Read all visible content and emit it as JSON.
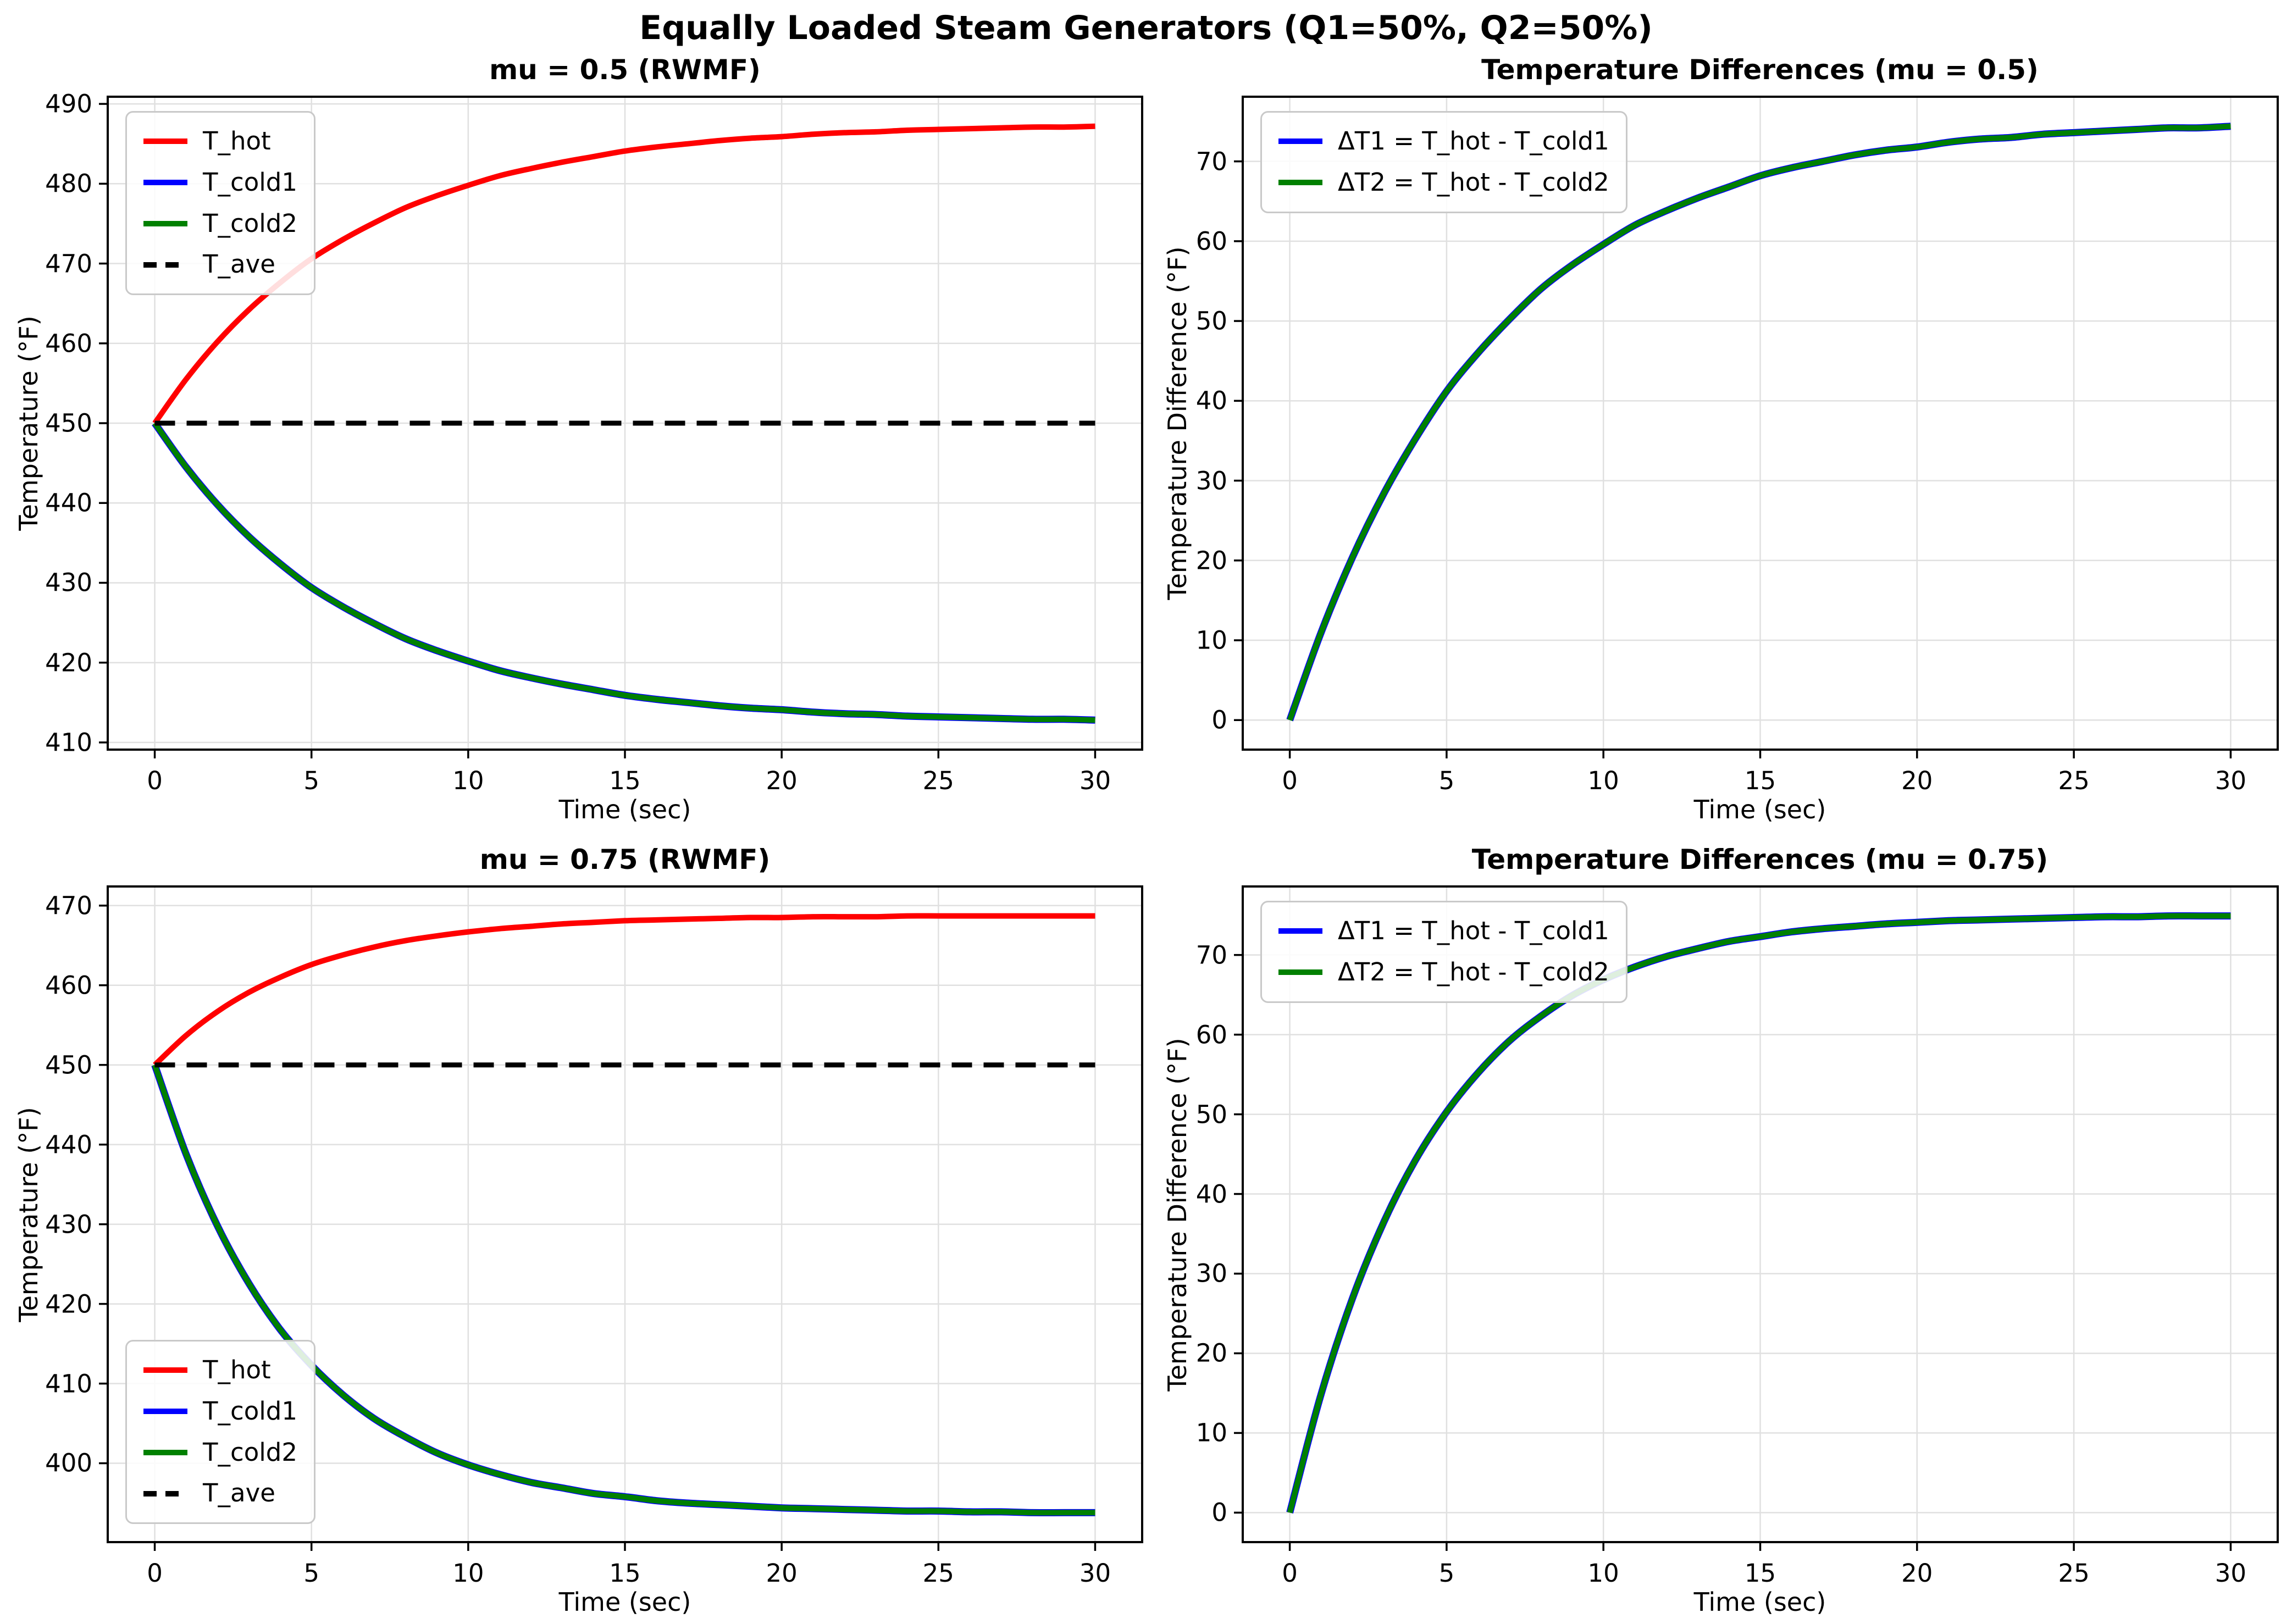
{
  "figure": {
    "suptitle": "Equally Loaded Steam Generators (Q1=50%, Q2=50%)",
    "background": "#ffffff"
  },
  "colors": {
    "t_hot": "#ff0000",
    "t_cold1": "#0000ff",
    "t_cold2": "#008000",
    "t_ave": "#000000",
    "grid": "#e0e0e0",
    "spine": "#000000",
    "text": "#000000"
  },
  "chart_data": [
    {
      "type": "line",
      "title": "mu = 0.5 (RWMF)",
      "xlabel": "Time (sec)",
      "ylabel": "Temperature (°F)",
      "xlim": [
        -1.5,
        31.5
      ],
      "ylim": [
        409.1,
        490.9
      ],
      "xticks": [
        0,
        5,
        10,
        15,
        20,
        25,
        30
      ],
      "yticks": [
        410,
        420,
        430,
        440,
        450,
        460,
        470,
        480,
        490
      ],
      "grid": true,
      "legend_position": "upper-left",
      "x": [
        0,
        1,
        2,
        3,
        4,
        5,
        6,
        7,
        8,
        9,
        10,
        11,
        12,
        13,
        14,
        15,
        16,
        17,
        18,
        19,
        20,
        21,
        22,
        23,
        24,
        25,
        26,
        27,
        28,
        29,
        30
      ],
      "series": [
        {
          "name": "T_hot",
          "color_key": "t_hot",
          "style": "solid",
          "values": [
            450,
            455.5,
            460.2,
            464.2,
            467.6,
            470.6,
            473,
            475.1,
            477,
            478.5,
            479.8,
            481,
            481.9,
            482.7,
            483.4,
            484.1,
            484.6,
            485,
            485.4,
            485.7,
            485.9,
            486.2,
            486.4,
            486.5,
            486.7,
            486.8,
            486.9,
            487,
            487.1,
            487.1,
            487.2
          ]
        },
        {
          "name": "T_cold1",
          "color_key": "t_cold1",
          "style": "solid",
          "values": [
            450,
            444.5,
            439.8,
            435.8,
            432.4,
            429.4,
            427,
            424.9,
            423,
            421.5,
            420.2,
            419,
            418.1,
            417.3,
            416.6,
            415.9,
            415.4,
            415,
            414.6,
            414.3,
            414.1,
            413.8,
            413.6,
            413.5,
            413.3,
            413.2,
            413.1,
            413,
            412.9,
            412.9,
            412.8
          ]
        },
        {
          "name": "T_cold2",
          "color_key": "t_cold2",
          "style": "solid",
          "values": [
            450,
            444.5,
            439.8,
            435.8,
            432.4,
            429.4,
            427,
            424.9,
            423,
            421.5,
            420.2,
            419,
            418.1,
            417.3,
            416.6,
            415.9,
            415.4,
            415,
            414.6,
            414.3,
            414.1,
            413.8,
            413.6,
            413.5,
            413.3,
            413.2,
            413.1,
            413,
            412.9,
            412.9,
            412.8
          ]
        },
        {
          "name": "T_ave",
          "color_key": "t_ave",
          "style": "dashed",
          "values": [
            450,
            450,
            450,
            450,
            450,
            450,
            450,
            450,
            450,
            450,
            450,
            450,
            450,
            450,
            450,
            450,
            450,
            450,
            450,
            450,
            450,
            450,
            450,
            450,
            450,
            450,
            450,
            450,
            450,
            450,
            450
          ]
        }
      ]
    },
    {
      "type": "line",
      "title": "Temperature Differences (mu = 0.5)",
      "xlabel": "Time (sec)",
      "ylabel": "Temperature Difference (°F)",
      "xlim": [
        -1.5,
        31.5
      ],
      "ylim": [
        -3.7,
        78.1
      ],
      "xticks": [
        0,
        5,
        10,
        15,
        20,
        25,
        30
      ],
      "yticks": [
        0,
        10,
        20,
        30,
        40,
        50,
        60,
        70
      ],
      "grid": true,
      "legend_position": "upper-left",
      "x": [
        0,
        1,
        2,
        3,
        4,
        5,
        6,
        7,
        8,
        9,
        10,
        11,
        12,
        13,
        14,
        15,
        16,
        17,
        18,
        19,
        20,
        21,
        22,
        23,
        24,
        25,
        26,
        27,
        28,
        29,
        30
      ],
      "series": [
        {
          "name": "ΔT1 = T_hot - T_cold1",
          "color_key": "t_cold1",
          "style": "solid",
          "values": [
            0,
            11,
            20.4,
            28.4,
            35.2,
            41.2,
            46,
            50.2,
            54,
            57,
            59.6,
            62,
            63.8,
            65.4,
            66.8,
            68.2,
            69.2,
            70,
            70.8,
            71.4,
            71.8,
            72.4,
            72.8,
            73,
            73.4,
            73.6,
            73.8,
            74,
            74.2,
            74.2,
            74.4
          ]
        },
        {
          "name": "ΔT2 = T_hot - T_cold2",
          "color_key": "t_cold2",
          "style": "solid",
          "values": [
            0,
            11,
            20.4,
            28.4,
            35.2,
            41.2,
            46,
            50.2,
            54,
            57,
            59.6,
            62,
            63.8,
            65.4,
            66.8,
            68.2,
            69.2,
            70,
            70.8,
            71.4,
            71.8,
            72.4,
            72.8,
            73,
            73.4,
            73.6,
            73.8,
            74,
            74.2,
            74.2,
            74.4
          ]
        }
      ]
    },
    {
      "type": "line",
      "title": "mu = 0.75 (RWMF)",
      "xlabel": "Time (sec)",
      "ylabel": "Temperature (°F)",
      "xlim": [
        -1.5,
        31.5
      ],
      "ylim": [
        390.1,
        472.4
      ],
      "xticks": [
        0,
        5,
        10,
        15,
        20,
        25,
        30
      ],
      "yticks": [
        400,
        410,
        420,
        430,
        440,
        450,
        460,
        470
      ],
      "grid": true,
      "legend_position": "lower-left",
      "x": [
        0,
        1,
        2,
        3,
        4,
        5,
        6,
        7,
        8,
        9,
        10,
        11,
        12,
        13,
        14,
        15,
        16,
        17,
        18,
        19,
        20,
        21,
        22,
        23,
        24,
        25,
        26,
        27,
        28,
        29,
        30
      ],
      "series": [
        {
          "name": "T_hot",
          "color_key": "t_hot",
          "style": "solid",
          "values": [
            450,
            453.7,
            456.7,
            459.1,
            461,
            462.6,
            463.8,
            464.8,
            465.6,
            466.2,
            466.7,
            467.1,
            467.4,
            467.7,
            467.9,
            468.1,
            468.2,
            468.3,
            468.4,
            468.5,
            468.5,
            468.6,
            468.6,
            468.6,
            468.7,
            468.7,
            468.7,
            468.7,
            468.7,
            468.7,
            468.7
          ]
        },
        {
          "name": "T_cold1",
          "color_key": "t_cold1",
          "style": "solid",
          "values": [
            450,
            438.8,
            429.8,
            422.6,
            416.8,
            412.3,
            408.6,
            405.6,
            403.3,
            401.3,
            399.8,
            398.6,
            397.6,
            396.9,
            396.2,
            395.8,
            395.3,
            395,
            394.8,
            394.6,
            394.4,
            394.3,
            394.2,
            394.1,
            394,
            394,
            393.9,
            393.9,
            393.8,
            393.8,
            393.8
          ]
        },
        {
          "name": "T_cold2",
          "color_key": "t_cold2",
          "style": "solid",
          "values": [
            450,
            438.8,
            429.8,
            422.6,
            416.8,
            412.3,
            408.6,
            405.6,
            403.3,
            401.3,
            399.8,
            398.6,
            397.6,
            396.9,
            396.2,
            395.8,
            395.3,
            395,
            394.8,
            394.6,
            394.4,
            394.3,
            394.2,
            394.1,
            394,
            394,
            393.9,
            393.9,
            393.8,
            393.8,
            393.8
          ]
        },
        {
          "name": "T_ave",
          "color_key": "t_ave",
          "style": "dashed",
          "values": [
            450,
            450,
            450,
            450,
            450,
            450,
            450,
            450,
            450,
            450,
            450,
            450,
            450,
            450,
            450,
            450,
            450,
            450,
            450,
            450,
            450,
            450,
            450,
            450,
            450,
            450,
            450,
            450,
            450,
            450,
            450
          ]
        }
      ]
    },
    {
      "type": "line",
      "title": "Temperature Differences (mu = 0.75)",
      "xlabel": "Time (sec)",
      "ylabel": "Temperature Difference (°F)",
      "xlim": [
        -1.5,
        31.5
      ],
      "ylim": [
        -3.7,
        78.6
      ],
      "xticks": [
        0,
        5,
        10,
        15,
        20,
        25,
        30
      ],
      "yticks": [
        0,
        10,
        20,
        30,
        40,
        50,
        60,
        70
      ],
      "grid": true,
      "legend_position": "upper-left",
      "x": [
        0,
        1,
        2,
        3,
        4,
        5,
        6,
        7,
        8,
        9,
        10,
        11,
        12,
        13,
        14,
        15,
        16,
        17,
        18,
        19,
        20,
        21,
        22,
        23,
        24,
        25,
        26,
        27,
        28,
        29,
        30
      ],
      "series": [
        {
          "name": "ΔT1 = T_hot - T_cold1",
          "color_key": "t_cold1",
          "style": "solid",
          "values": [
            0,
            14.9,
            26.9,
            36.5,
            44.2,
            50.3,
            55.2,
            59.2,
            62.3,
            64.9,
            66.9,
            68.5,
            69.8,
            70.8,
            71.7,
            72.3,
            72.9,
            73.3,
            73.6,
            73.9,
            74.1,
            74.3,
            74.4,
            74.5,
            74.6,
            74.7,
            74.8,
            74.8,
            74.9,
            74.9,
            74.9
          ]
        },
        {
          "name": "ΔT2 = T_hot - T_cold2",
          "color_key": "t_cold2",
          "style": "solid",
          "values": [
            0,
            14.9,
            26.9,
            36.5,
            44.2,
            50.3,
            55.2,
            59.2,
            62.3,
            64.9,
            66.9,
            68.5,
            69.8,
            70.8,
            71.7,
            72.3,
            72.9,
            73.3,
            73.6,
            73.9,
            74.1,
            74.3,
            74.4,
            74.5,
            74.6,
            74.7,
            74.8,
            74.8,
            74.9,
            74.9,
            74.9
          ]
        }
      ]
    }
  ]
}
